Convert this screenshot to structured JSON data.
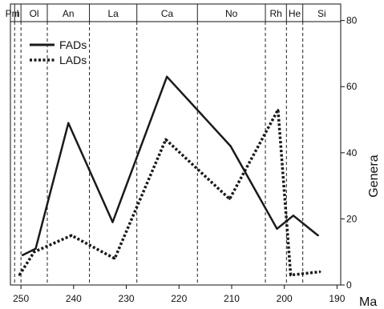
{
  "chart_data": {
    "type": "line",
    "xlabel": "Ma",
    "ylabel": "Genera",
    "xlim": [
      252,
      189.3
    ],
    "ylim": [
      0,
      85
    ],
    "x_ticks": [
      250,
      240,
      230,
      220,
      210,
      200,
      190
    ],
    "y_ticks": [
      0,
      20,
      40,
      60,
      80
    ],
    "stages": [
      {
        "label": "Pm",
        "start": 252,
        "end": 251.2
      },
      {
        "label": "I",
        "start": 251.2,
        "end": 250.0
      },
      {
        "label": "Ol",
        "start": 250.0,
        "end": 245.0
      },
      {
        "label": "An",
        "start": 245.0,
        "end": 237.0
      },
      {
        "label": "La",
        "start": 237.0,
        "end": 228.0
      },
      {
        "label": "Ca",
        "start": 228.0,
        "end": 216.5
      },
      {
        "label": "No",
        "start": 216.5,
        "end": 203.6
      },
      {
        "label": "Rh",
        "start": 203.6,
        "end": 199.6
      },
      {
        "label": "He",
        "start": 199.6,
        "end": 196.5
      },
      {
        "label": "Si",
        "start": 196.5,
        "end": 189.3
      }
    ],
    "series": [
      {
        "name": "FADs",
        "style": "solid",
        "x": [
          249.7,
          247.2,
          241.0,
          232.6,
          222.3,
          210.2,
          201.4,
          198.3,
          193.6
        ],
        "y": [
          9,
          11,
          49,
          19,
          63,
          42,
          17,
          21,
          15
        ]
      },
      {
        "name": "LADs",
        "style": "dotted",
        "x": [
          250.3,
          247.5,
          240.4,
          232.2,
          222.5,
          210.4,
          201.2,
          198.8,
          193.2
        ],
        "y": [
          3,
          10,
          15,
          8,
          44,
          26,
          53,
          3,
          4
        ]
      }
    ],
    "legend_position": "top-left",
    "grid": false
  },
  "colors": {
    "line": "#1a1a1a",
    "axis": "#111111",
    "divider": "#222222"
  }
}
